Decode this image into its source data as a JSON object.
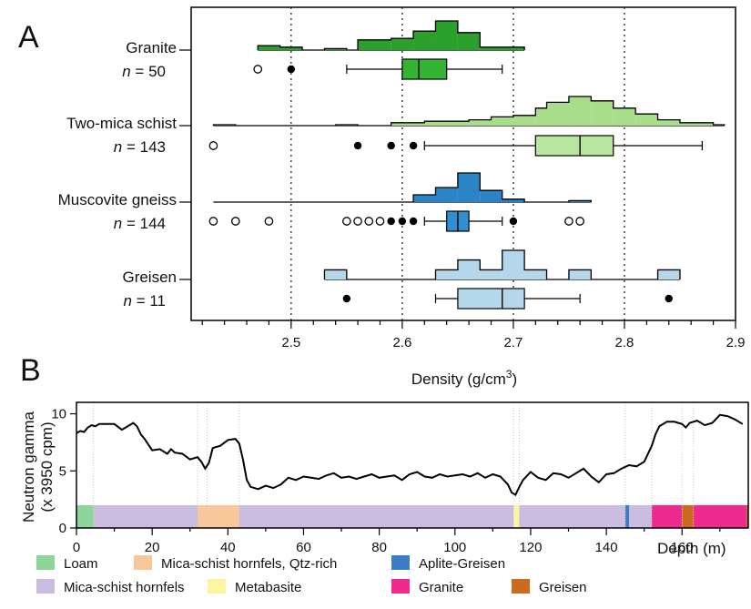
{
  "panels": {
    "a": "A",
    "b": "B"
  },
  "chart_data": [
    {
      "type": "histogram-boxplot",
      "panel": "A",
      "xlabel_main": "Density (g/cm",
      "xlabel_sup": "3",
      "xlabel_end": ")",
      "xlim": [
        2.41,
        2.9
      ],
      "xticks": [
        2.5,
        2.6,
        2.7,
        2.8,
        2.9
      ],
      "xtick_labels": [
        "2.5",
        "2.6",
        "2.7",
        "2.8",
        "2.9"
      ],
      "grid_lines_x": [
        2.5,
        2.6,
        2.7,
        2.8
      ],
      "groups": [
        {
          "name": "Granite",
          "n_prefix": "n",
          "n_value": " = 50",
          "fill": "#2ca02c",
          "box_fill": "#33b533",
          "hist": {
            "range": [
              2.47,
              2.71
            ],
            "bins": [
              [
                2.47,
                2.49,
                0.15
              ],
              [
                2.49,
                2.51,
                0.1
              ],
              [
                2.53,
                2.55,
                0.05
              ],
              [
                2.56,
                2.59,
                0.35
              ],
              [
                2.59,
                2.61,
                0.4
              ],
              [
                2.61,
                2.63,
                0.65
              ],
              [
                2.63,
                2.65,
                1.0
              ],
              [
                2.65,
                2.67,
                0.6
              ],
              [
                2.67,
                2.71,
                0.1
              ]
            ]
          },
          "box": {
            "whisker_low": 2.55,
            "q1": 2.6,
            "median": 2.615,
            "q3": 2.64,
            "whisker_high": 2.69
          },
          "outliers_far": [
            2.47
          ],
          "outliers_near": [
            2.5
          ]
        },
        {
          "name": "Two-mica schist",
          "n_prefix": "n",
          "n_value": " = 143",
          "fill": "#a8dd8a",
          "box_fill": "#b8e6a0",
          "hist": {
            "range": [
              2.43,
              2.89
            ],
            "bins": [
              [
                2.43,
                2.45,
                0.03
              ],
              [
                2.54,
                2.56,
                0.03
              ],
              [
                2.59,
                2.62,
                0.1
              ],
              [
                2.62,
                2.66,
                0.15
              ],
              [
                2.66,
                2.68,
                0.2
              ],
              [
                2.68,
                2.7,
                0.3
              ],
              [
                2.7,
                2.72,
                0.35
              ],
              [
                2.72,
                2.73,
                0.6
              ],
              [
                2.73,
                2.75,
                0.8
              ],
              [
                2.75,
                2.77,
                1.0
              ],
              [
                2.77,
                2.79,
                0.85
              ],
              [
                2.79,
                2.81,
                0.6
              ],
              [
                2.81,
                2.83,
                0.4
              ],
              [
                2.83,
                2.85,
                0.2
              ],
              [
                2.85,
                2.88,
                0.1
              ],
              [
                2.88,
                2.89,
                0.03
              ]
            ]
          },
          "box": {
            "whisker_low": 2.62,
            "q1": 2.72,
            "median": 2.76,
            "q3": 2.79,
            "whisker_high": 2.87
          },
          "outliers_far": [
            2.43
          ],
          "outliers_near": [
            2.56,
            2.59,
            2.61
          ]
        },
        {
          "name": "Muscovite gneiss",
          "n_prefix": "n",
          "n_value": " = 144",
          "fill": "#2a84c5",
          "box_fill": "#2f8fd1",
          "hist": {
            "range": [
              2.43,
              2.77
            ],
            "bins": [
              [
                2.61,
                2.63,
                0.25
              ],
              [
                2.63,
                2.65,
                0.5
              ],
              [
                2.65,
                2.67,
                1.0
              ],
              [
                2.67,
                2.69,
                0.4
              ],
              [
                2.69,
                2.71,
                0.1
              ],
              [
                2.75,
                2.77,
                0.05
              ]
            ]
          },
          "box": {
            "whisker_low": 2.62,
            "q1": 2.64,
            "median": 2.65,
            "q3": 2.66,
            "whisker_high": 2.69
          },
          "outliers_far": [
            2.43,
            2.45,
            2.48,
            2.55,
            2.56,
            2.57,
            2.58,
            2.75,
            2.76
          ],
          "outliers_near": [
            2.59,
            2.6,
            2.61,
            2.7
          ]
        },
        {
          "name": "Greisen",
          "n_prefix": "n",
          "n_value": " = 11",
          "fill": "#b5d7ec",
          "box_fill": "#b5d7ec",
          "hist": {
            "range": [
              2.53,
              2.85
            ],
            "bins": [
              [
                2.53,
                2.55,
                0.33
              ],
              [
                2.63,
                2.65,
                0.33
              ],
              [
                2.65,
                2.67,
                0.67
              ],
              [
                2.67,
                2.69,
                0.33
              ],
              [
                2.69,
                2.71,
                1.0
              ],
              [
                2.71,
                2.73,
                0.33
              ],
              [
                2.75,
                2.77,
                0.33
              ],
              [
                2.83,
                2.85,
                0.33
              ]
            ]
          },
          "box": {
            "whisker_low": 2.63,
            "q1": 2.65,
            "median": 2.69,
            "q3": 2.71,
            "whisker_high": 2.76
          },
          "outliers_far": [],
          "outliers_near": [
            2.55,
            2.84
          ]
        }
      ]
    },
    {
      "type": "line",
      "panel": "B",
      "ylabel_line1": "Neutron gamma",
      "ylabel_line2": "(x 3950 cpm)",
      "xlabel": "Depth (m)",
      "xlim": [
        0,
        177.5
      ],
      "ylim": [
        0,
        11
      ],
      "xticks": [
        0,
        20,
        40,
        60,
        80,
        100,
        120,
        140,
        160
      ],
      "yticks": [
        0,
        5,
        10
      ],
      "series": [
        {
          "color": "#000000",
          "x": [
            0,
            1,
            2,
            3,
            4,
            5,
            6,
            8,
            10,
            12,
            14,
            15,
            16,
            17,
            18,
            20,
            22,
            24,
            25,
            26,
            28,
            30,
            32,
            33,
            34,
            35,
            36,
            38,
            40,
            42,
            43,
            44,
            45,
            46,
            48,
            50,
            52,
            54,
            56,
            58,
            60,
            62,
            64,
            66,
            68,
            70,
            72,
            74,
            76,
            78,
            80,
            82,
            84,
            86,
            88,
            90,
            92,
            94,
            96,
            98,
            100,
            102,
            104,
            106,
            108,
            110,
            112,
            114,
            115,
            116,
            117,
            118,
            120,
            122,
            124,
            126,
            128,
            130,
            132,
            134,
            136,
            138,
            140,
            142,
            144,
            146,
            148,
            150,
            152,
            153,
            154,
            156,
            158,
            160,
            161,
            162,
            164,
            166,
            168,
            170,
            172,
            174,
            176
          ],
          "y": [
            8.3,
            8.5,
            8.4,
            8.8,
            9.0,
            8.9,
            9.1,
            9.1,
            9.1,
            8.6,
            9.0,
            9.2,
            8.9,
            8.2,
            7.8,
            6.8,
            6.9,
            6.5,
            6.9,
            6.6,
            6.5,
            6.0,
            6.2,
            5.8,
            5.2,
            5.7,
            7.0,
            7.2,
            7.7,
            7.8,
            7.4,
            6.0,
            4.2,
            3.6,
            3.4,
            3.7,
            3.5,
            3.8,
            4.4,
            4.2,
            4.5,
            4.4,
            4.3,
            4.6,
            4.8,
            4.4,
            4.5,
            4.3,
            4.5,
            4.7,
            4.4,
            4.5,
            4.6,
            4.2,
            4.7,
            4.9,
            4.5,
            4.4,
            4.7,
            4.5,
            4.6,
            4.7,
            4.5,
            4.8,
            4.4,
            4.7,
            4.5,
            3.8,
            3.1,
            2.9,
            3.6,
            4.2,
            4.9,
            4.4,
            4.2,
            4.8,
            4.7,
            4.4,
            4.8,
            5.2,
            4.5,
            4.0,
            4.7,
            4.8,
            5.2,
            5.5,
            5.4,
            5.8,
            7.2,
            8.2,
            8.9,
            9.3,
            9.3,
            9.1,
            8.8,
            9.2,
            9.4,
            9.0,
            9.2,
            9.9,
            9.8,
            9.5,
            9.1
          ]
        }
      ],
      "lithology_bar": [
        {
          "from": 0,
          "to": 4.5,
          "unit": "Loam"
        },
        {
          "from": 4.5,
          "to": 32,
          "unit": "Mica-schist hornfels"
        },
        {
          "from": 32,
          "to": 43,
          "unit": "Mica-schist hornfels, Qtz-rich"
        },
        {
          "from": 43,
          "to": 115.5,
          "unit": "Mica-schist hornfels"
        },
        {
          "from": 115.5,
          "to": 117,
          "unit": "Metabasite"
        },
        {
          "from": 117,
          "to": 145,
          "unit": "Mica-schist hornfels"
        },
        {
          "from": 145,
          "to": 146,
          "unit": "Aplite-Greisen"
        },
        {
          "from": 146,
          "to": 152,
          "unit": "Mica-schist hornfels"
        },
        {
          "from": 152,
          "to": 160,
          "unit": "Granite"
        },
        {
          "from": 160,
          "to": 163,
          "unit": "Greisen"
        },
        {
          "from": 163,
          "to": 177,
          "unit": "Granite"
        },
        {
          "from": 177,
          "to": 177.5,
          "unit": "Greisen"
        }
      ],
      "boundary_lines": [
        4.5,
        32,
        34.5,
        43,
        115.5,
        117,
        145,
        152,
        160,
        163
      ],
      "legend": [
        {
          "label": "Loam",
          "color": "#8fd49b"
        },
        {
          "label": "Mica-schist hornfels, Qtz-rich",
          "color": "#f8c89a"
        },
        {
          "label": "Aplite-Greisen",
          "color": "#3b7dc4"
        },
        {
          "label": "Mica-schist hornfels",
          "color": "#cbbde0"
        },
        {
          "label": "Metabasite",
          "color": "#fdf5a6"
        },
        {
          "label": "Granite",
          "color": "#ee2a8f"
        },
        {
          "label": "Greisen",
          "color": "#cc6b1f"
        }
      ]
    }
  ]
}
